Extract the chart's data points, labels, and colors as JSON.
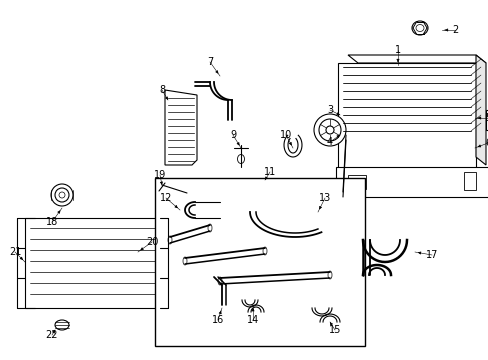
{
  "bg_color": "#ffffff",
  "fig_width": 4.89,
  "fig_height": 3.6,
  "dpi": 100,
  "lc": "#000000",
  "lw": 0.8,
  "fs": 7
}
